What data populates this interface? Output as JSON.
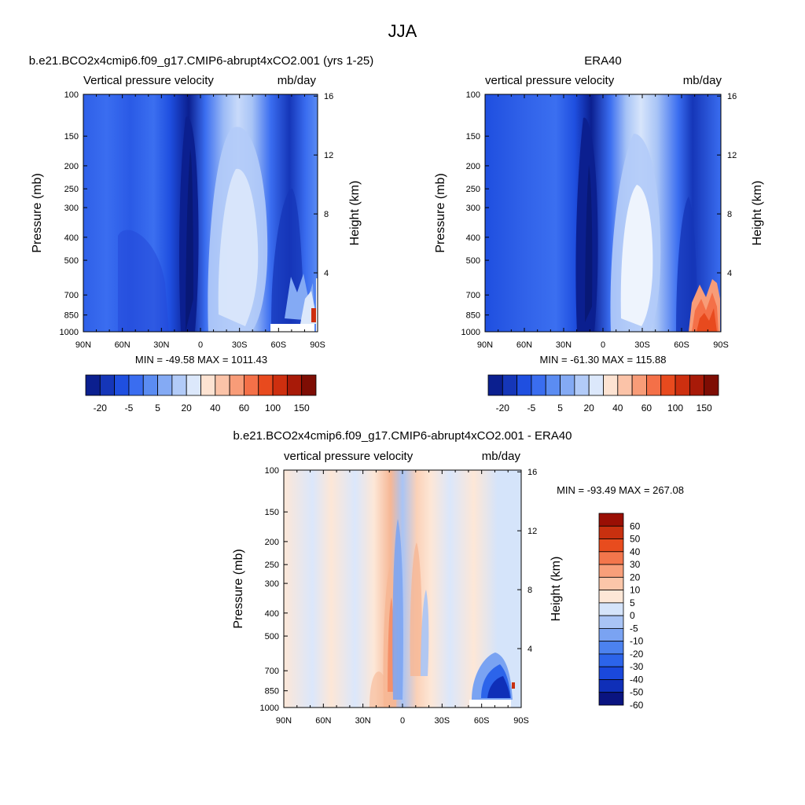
{
  "figure": {
    "title": "JJA"
  },
  "colors": {
    "blues": [
      "#0b1f8f",
      "#1536b8",
      "#1f4fe0",
      "#3a6df0",
      "#5b8cf2",
      "#84aaf4",
      "#b2cbf8",
      "#dce8fb"
    ],
    "reds": [
      "#fde3d2",
      "#fbc3a8",
      "#f89c78",
      "#f47048",
      "#e84a1e",
      "#cd2f0f",
      "#a81a08",
      "#7e0d04"
    ],
    "diff_blues": [
      "#0a1480",
      "#0f2fb8",
      "#1a48dc",
      "#2c64ea",
      "#4c82ef",
      "#7aa3f2",
      "#a9c4f5",
      "#d5e4fa"
    ],
    "diff_reds": [
      "#fde7d7",
      "#fbc6a9",
      "#f89f7a",
      "#f3764c",
      "#e84c1e",
      "#c8300f",
      "#9a0f04"
    ]
  },
  "chart_data": [
    {
      "type": "heatmap",
      "title": "b.e21.BCO2x4cmip6.f09_g17.CMIP6-abrupt4xCO2.001 (yrs 1-25)",
      "subtitle_left": "Vertical pressure velocity",
      "subtitle_right": "mb/day",
      "xlabel": "",
      "ylabel": "Pressure (mb)",
      "ylabel_right": "Height (km)",
      "x_ticks": [
        "90N",
        "60N",
        "30N",
        "0",
        "30S",
        "60S",
        "90S"
      ],
      "y_ticks": [
        100,
        150,
        200,
        250,
        300,
        400,
        500,
        700,
        850,
        1000
      ],
      "y_right_ticks": [
        4,
        8,
        12,
        16
      ],
      "y_scale": "log",
      "min_max_text": "MIN = -49.58  MAX = 1011.43",
      "colorbar_labels": [
        "-20",
        "-5",
        "5",
        "20",
        "40",
        "60",
        "100",
        "150"
      ]
    },
    {
      "type": "heatmap",
      "title": "ERA40",
      "subtitle_left": "vertical pressure velocity",
      "subtitle_right": "mb/day",
      "xlabel": "",
      "ylabel": "Pressure (mb)",
      "ylabel_right": "Height (km)",
      "x_ticks": [
        "90N",
        "60N",
        "30N",
        "0",
        "30S",
        "60S",
        "90S"
      ],
      "y_ticks": [
        100,
        150,
        200,
        250,
        300,
        400,
        500,
        700,
        850,
        1000
      ],
      "y_right_ticks": [
        4,
        8,
        12,
        16
      ],
      "y_scale": "log",
      "min_max_text": "MIN = -61.30  MAX = 115.88",
      "colorbar_labels": [
        "-20",
        "-5",
        "5",
        "20",
        "40",
        "60",
        "100",
        "150"
      ]
    },
    {
      "type": "heatmap",
      "title": "b.e21.BCO2x4cmip6.f09_g17.CMIP6-abrupt4xCO2.001 - ERA40",
      "subtitle_left": "vertical pressure velocity",
      "subtitle_right": "mb/day",
      "xlabel": "",
      "ylabel": "Pressure (mb)",
      "ylabel_right": "Height (km)",
      "x_ticks": [
        "90N",
        "60N",
        "30N",
        "0",
        "30S",
        "60S",
        "90S"
      ],
      "y_ticks": [
        100,
        150,
        200,
        250,
        300,
        400,
        500,
        700,
        850,
        1000
      ],
      "y_right_ticks": [
        4,
        8,
        12,
        16
      ],
      "y_scale": "log",
      "min_max_text": "MIN = -93.49  MAX = 267.08",
      "colorbar_labels": [
        "60",
        "50",
        "40",
        "30",
        "20",
        "10",
        "5",
        "0",
        "-5",
        "-10",
        "-20",
        "-30",
        "-40",
        "-50",
        "-60"
      ]
    }
  ]
}
